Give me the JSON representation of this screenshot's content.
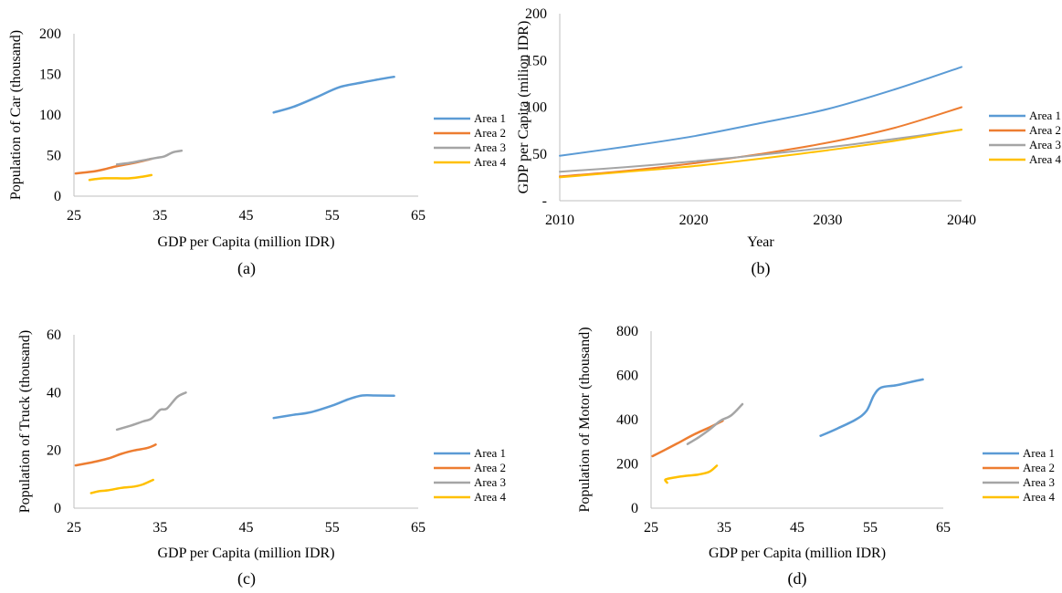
{
  "chart_data": [
    {
      "type": "line",
      "caption": "(a)",
      "xlabel": "GDP per Capita (million IDR)",
      "ylabel": "Population of Car (thousand)",
      "xlim": [
        25,
        65
      ],
      "ylim": [
        0,
        200
      ],
      "xticks": [
        "25",
        "35",
        "45",
        "55",
        "65"
      ],
      "yticks": [
        "0",
        "50",
        "100",
        "150",
        "200"
      ],
      "legend_position": "right",
      "series": [
        {
          "name": "Area 1",
          "color": "#5B9BD5",
          "points": [
            [
              48.2,
              103
            ],
            [
              50.5,
              110
            ],
            [
              53,
              121
            ],
            [
              55.8,
              134
            ],
            [
              58.5,
              140
            ],
            [
              60.5,
              144
            ],
            [
              62.2,
              147
            ]
          ]
        },
        {
          "name": "Area 2",
          "color": "#ED7D31",
          "points": [
            [
              25.2,
              28
            ],
            [
              27,
              30
            ],
            [
              28.5,
              33
            ],
            [
              30,
              37
            ],
            [
              32,
              41
            ],
            [
              34,
              46
            ]
          ]
        },
        {
          "name": "Area 3",
          "color": "#A5A5A5",
          "points": [
            [
              30,
              39
            ],
            [
              31.5,
              41
            ],
            [
              33,
              44
            ],
            [
              34.5,
              47
            ],
            [
              35.5,
              49
            ],
            [
              36.5,
              54
            ],
            [
              37.5,
              56
            ]
          ]
        },
        {
          "name": "Area 4",
          "color": "#FFC000",
          "points": [
            [
              26.8,
              20
            ],
            [
              27.5,
              21
            ],
            [
              28.5,
              22
            ],
            [
              30,
              22
            ],
            [
              31.5,
              22
            ],
            [
              33,
              24
            ],
            [
              34,
              26
            ]
          ]
        }
      ]
    },
    {
      "type": "line",
      "caption": "(b)",
      "xlabel": "Year",
      "ylabel": "GDP per Capita (milion IDR)",
      "xlim": [
        2010,
        2040
      ],
      "ylim": [
        0,
        200
      ],
      "xticks": [
        "2010",
        "2020",
        "2030",
        "2040"
      ],
      "yticks": [
        "-",
        "50",
        "100",
        "150",
        "200"
      ],
      "legend_position": "right",
      "series": [
        {
          "name": "Area 1",
          "color": "#5B9BD5",
          "points": [
            [
              2010,
              48
            ],
            [
              2015,
              58
            ],
            [
              2020,
              69
            ],
            [
              2025,
              83
            ],
            [
              2030,
              98
            ],
            [
              2035,
              119
            ],
            [
              2040,
              143
            ]
          ]
        },
        {
          "name": "Area 2",
          "color": "#ED7D31",
          "points": [
            [
              2010,
              26
            ],
            [
              2015,
              32
            ],
            [
              2020,
              40
            ],
            [
              2025,
              50
            ],
            [
              2030,
              62
            ],
            [
              2035,
              78
            ],
            [
              2040,
              100
            ]
          ]
        },
        {
          "name": "Area 3",
          "color": "#A5A5A5",
          "points": [
            [
              2010,
              31
            ],
            [
              2015,
              36
            ],
            [
              2020,
              42
            ],
            [
              2025,
              49
            ],
            [
              2030,
              57
            ],
            [
              2035,
              66
            ],
            [
              2040,
              76
            ]
          ]
        },
        {
          "name": "Area 4",
          "color": "#FFC000",
          "points": [
            [
              2010,
              25
            ],
            [
              2015,
              31
            ],
            [
              2020,
              37
            ],
            [
              2025,
              45
            ],
            [
              2030,
              54
            ],
            [
              2035,
              64
            ],
            [
              2040,
              76
            ]
          ]
        }
      ]
    },
    {
      "type": "line",
      "caption": "(c)",
      "xlabel": "GDP per Capita (million IDR)",
      "ylabel": "Population of Truck (thousand)",
      "xlim": [
        25,
        65
      ],
      "ylim": [
        0,
        60
      ],
      "xticks": [
        "25",
        "35",
        "45",
        "55",
        "65"
      ],
      "yticks": [
        "0",
        "20",
        "40",
        "60"
      ],
      "legend_position": "right",
      "series": [
        {
          "name": "Area 1",
          "color": "#5B9BD5",
          "points": [
            [
              48.2,
              31.2
            ],
            [
              50.5,
              32.3
            ],
            [
              52.5,
              33.2
            ],
            [
              55,
              35.5
            ],
            [
              57,
              37.8
            ],
            [
              58.5,
              39
            ],
            [
              60,
              39
            ],
            [
              62.2,
              38.9
            ]
          ]
        },
        {
          "name": "Area 2",
          "color": "#ED7D31",
          "points": [
            [
              25.2,
              14.8
            ],
            [
              27,
              15.8
            ],
            [
              29,
              17.2
            ],
            [
              30.5,
              18.8
            ],
            [
              32,
              20
            ],
            [
              33.5,
              20.8
            ],
            [
              34.5,
              22
            ]
          ]
        },
        {
          "name": "Area 3",
          "color": "#A5A5A5",
          "points": [
            [
              30,
              27.2
            ],
            [
              31.5,
              28.5
            ],
            [
              33,
              30
            ],
            [
              34,
              31
            ],
            [
              35,
              34
            ],
            [
              35.8,
              34.5
            ],
            [
              37,
              38.5
            ],
            [
              38,
              40
            ]
          ]
        },
        {
          "name": "Area 4",
          "color": "#FFC000",
          "points": [
            [
              27,
              5.2
            ],
            [
              27.8,
              5.8
            ],
            [
              29,
              6.2
            ],
            [
              30.5,
              7
            ],
            [
              32,
              7.5
            ],
            [
              33,
              8.2
            ],
            [
              34.2,
              9.8
            ]
          ]
        }
      ]
    },
    {
      "type": "line",
      "caption": "(d)",
      "xlabel": "GDP per Capita (million IDR)",
      "ylabel": "Population of Motor (thousand)",
      "xlim": [
        25,
        65
      ],
      "ylim": [
        0,
        800
      ],
      "xticks": [
        "25",
        "35",
        "45",
        "55",
        "65"
      ],
      "yticks": [
        "0",
        "200",
        "400",
        "600",
        "800"
      ],
      "legend_position": "right",
      "series": [
        {
          "name": "Area 1",
          "color": "#5B9BD5",
          "points": [
            [
              48.2,
              327
            ],
            [
              50.5,
              360
            ],
            [
              53,
              400
            ],
            [
              54.5,
              440
            ],
            [
              55.5,
              510
            ],
            [
              56.5,
              545
            ],
            [
              58.5,
              555
            ],
            [
              60.5,
              570
            ],
            [
              62.2,
              582
            ]
          ]
        },
        {
          "name": "Area 2",
          "color": "#ED7D31",
          "points": [
            [
              25.2,
              235
            ],
            [
              27,
              265
            ],
            [
              29,
              300
            ],
            [
              31,
              335
            ],
            [
              33,
              365
            ],
            [
              34.8,
              395
            ]
          ]
        },
        {
          "name": "Area 3",
          "color": "#A5A5A5",
          "points": [
            [
              30,
              290
            ],
            [
              31.5,
              320
            ],
            [
              33,
              355
            ],
            [
              34.5,
              395
            ],
            [
              36,
              420
            ],
            [
              37.5,
              470
            ]
          ]
        },
        {
          "name": "Area 4",
          "color": "#FFC000",
          "points": [
            [
              27.2,
              115
            ],
            [
              27,
              130
            ],
            [
              28.5,
              140
            ],
            [
              30,
              147
            ],
            [
              31.5,
              152
            ],
            [
              33,
              165
            ],
            [
              34,
              192
            ]
          ]
        }
      ]
    }
  ]
}
